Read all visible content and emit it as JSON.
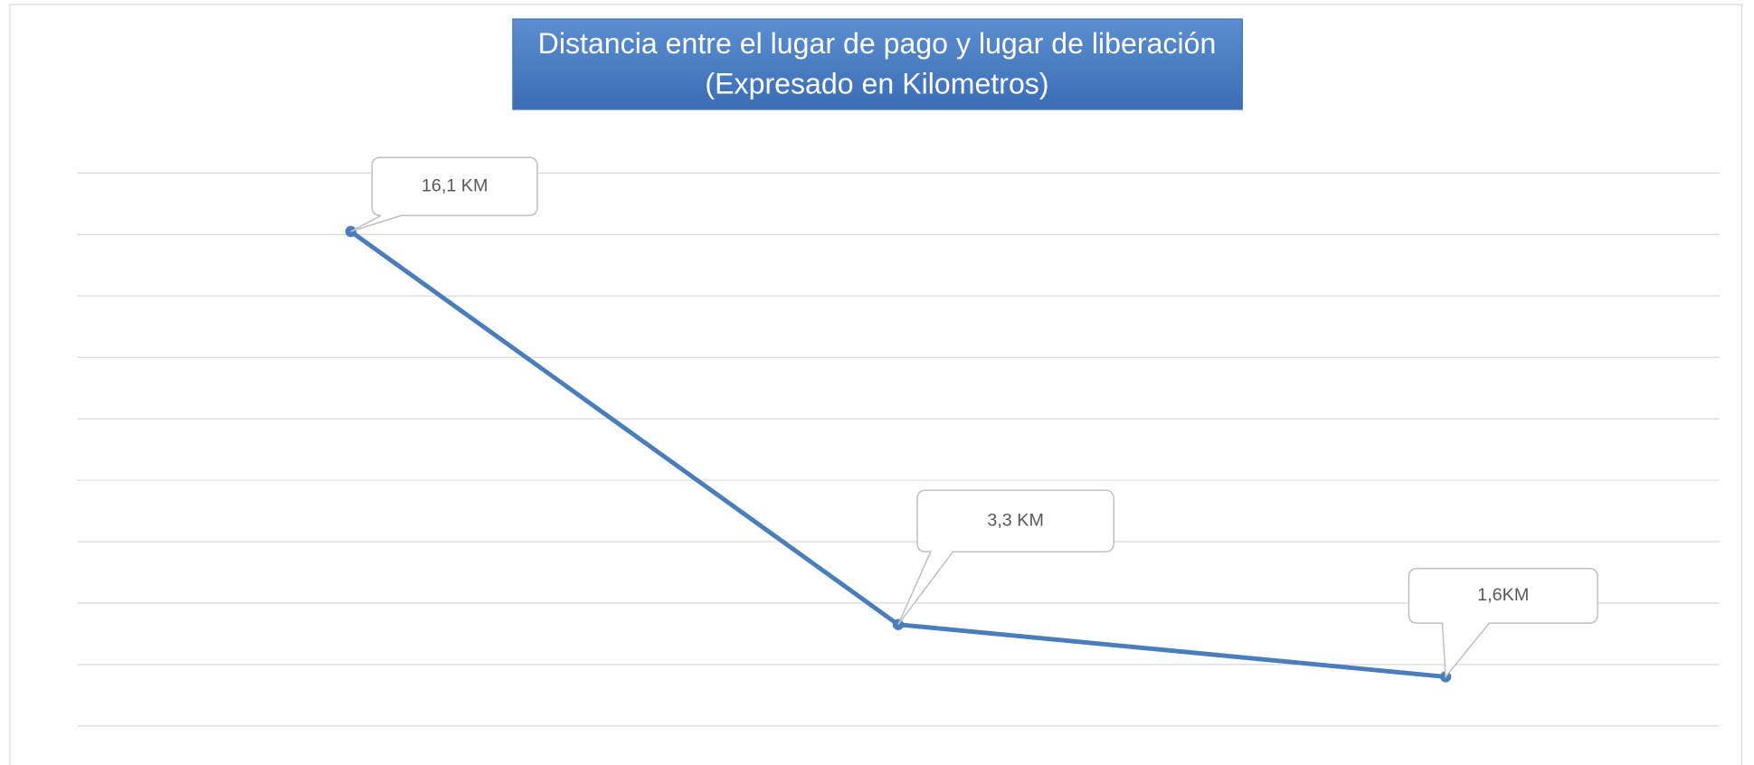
{
  "chart_data": {
    "type": "line",
    "title": "Distancia entre el lugar de pago y lugar de liberación",
    "subtitle": "(Expresado en Kilometros)",
    "categories": [
      null,
      null,
      null
    ],
    "series": [
      {
        "name": null,
        "color": "#4a7ebb",
        "values": [
          16.1,
          3.3,
          1.6
        ],
        "value_labels": [
          "16,1 KM",
          "3,3 KM",
          "1,6KM"
        ]
      }
    ],
    "ylim": [
      0,
      18
    ],
    "yticks": [
      0,
      2,
      4,
      6,
      8,
      10,
      12,
      14,
      16,
      18
    ],
    "grid": true
  }
}
